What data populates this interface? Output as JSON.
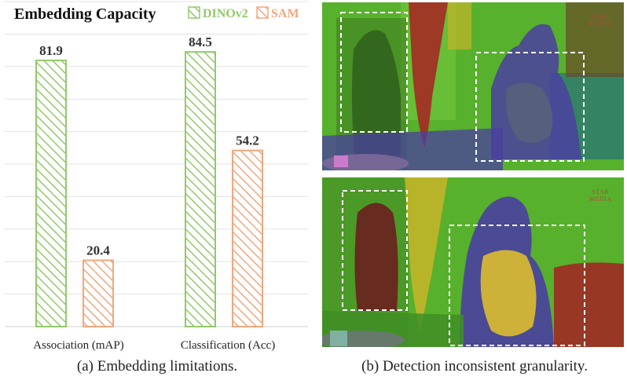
{
  "chart_data": {
    "type": "bar",
    "title": "Embedding Capacity",
    "categories": [
      "Association (mAP)",
      "Classification (Acc)"
    ],
    "series": [
      {
        "name": "DINOv2",
        "values": [
          81.9,
          84.5
        ],
        "color": "#92c96a"
      },
      {
        "name": "SAM",
        "values": [
          20.4,
          54.2
        ],
        "color": "#f0a77e"
      }
    ],
    "ylim": [
      0,
      100
    ],
    "legend_position": "top-right",
    "grid": true
  },
  "captions": {
    "left": "(a) Embedding limitations.",
    "right": "(b) Detection inconsistent granularity."
  },
  "watermark": "STAR MEDIA",
  "colors": {
    "green_mask": "#5bb82e",
    "purple_mask": "#4a3fa0",
    "teal_mask": "#2e7d6d",
    "red_mask": "#9a2323",
    "yellow_mask": "#c9b52a"
  }
}
